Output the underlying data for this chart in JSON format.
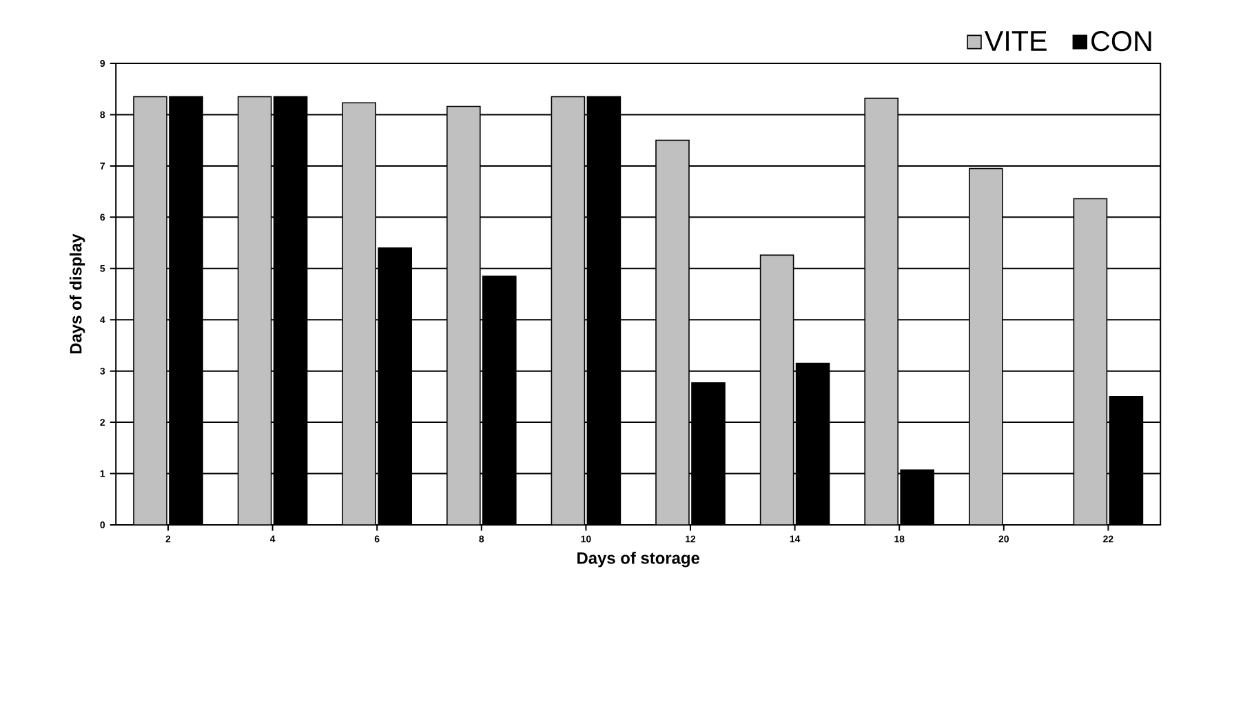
{
  "chart_data": {
    "type": "bar",
    "xlabel": "Days of storage",
    "ylabel": "Days of display",
    "categories": [
      "2",
      "4",
      "6",
      "8",
      "10",
      "12",
      "14",
      "18",
      "20",
      "22"
    ],
    "series": [
      {
        "name": "VITE",
        "color": "#c0c0c0",
        "values": [
          8.35,
          8.35,
          8.23,
          8.16,
          8.35,
          7.5,
          5.26,
          8.32,
          6.95,
          6.36
        ]
      },
      {
        "name": "CON",
        "color": "#000000",
        "values": [
          8.35,
          8.35,
          5.4,
          4.85,
          8.35,
          2.77,
          3.15,
          1.07,
          null,
          2.5
        ]
      }
    ],
    "ylim": [
      0,
      9
    ],
    "yticks": [
      0,
      1,
      2,
      3,
      4,
      5,
      6,
      7,
      8,
      9
    ],
    "grid": "y",
    "legend": "top right"
  }
}
